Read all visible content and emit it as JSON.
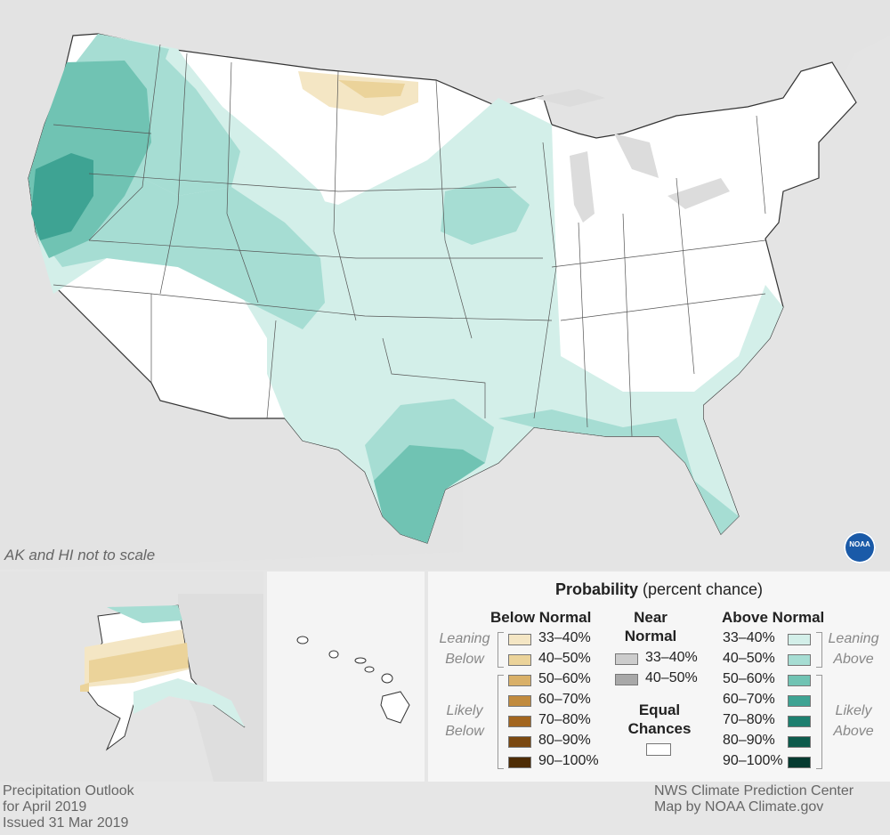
{
  "map": {
    "title_lines": [
      "Precipitation Outlook",
      "for April 2019",
      "Issued 31 Mar 2019"
    ],
    "credit_lines": [
      "NWS Climate Prediction Center",
      "Map by NOAA Climate.gov"
    ],
    "scale_note": "AK and HI not to scale",
    "logo_text": "NOAA"
  },
  "legend": {
    "title_bold": "Probability",
    "title_rest": " (percent chance)",
    "below_header": "Below Normal",
    "near_header_1": "Near",
    "near_header_2": "Normal",
    "above_header": "Above Normal",
    "leaning_1": "Leaning",
    "below_word": "Below",
    "likely_1": "Likely",
    "above_word": "Above",
    "equal_1": "Equal",
    "equal_2": "Chances",
    "below": [
      {
        "label": "33–40%",
        "color": "#f4e6c4"
      },
      {
        "label": "40–50%",
        "color": "#ebd39a"
      },
      {
        "label": "50–60%",
        "color": "#d9b068"
      },
      {
        "label": "60–70%",
        "color": "#c18b3e"
      },
      {
        "label": "70–80%",
        "color": "#a2651f"
      },
      {
        "label": "80–90%",
        "color": "#7a4810"
      },
      {
        "label": "90–100%",
        "color": "#4e2c05"
      }
    ],
    "near": [
      {
        "label": "33–40%",
        "color": "#cccccc"
      },
      {
        "label": "40–50%",
        "color": "#a8a8a8"
      }
    ],
    "above": [
      {
        "label": "33–40%",
        "color": "#d3efe9"
      },
      {
        "label": "40–50%",
        "color": "#a6ddd3"
      },
      {
        "label": "50–60%",
        "color": "#70c3b3"
      },
      {
        "label": "60–70%",
        "color": "#3ea393"
      },
      {
        "label": "70–80%",
        "color": "#1d7f6f"
      },
      {
        "label": "80–90%",
        "color": "#0d5a4c"
      },
      {
        "label": "90–100%",
        "color": "#053a30"
      }
    ],
    "equal_color": "#ffffff"
  }
}
